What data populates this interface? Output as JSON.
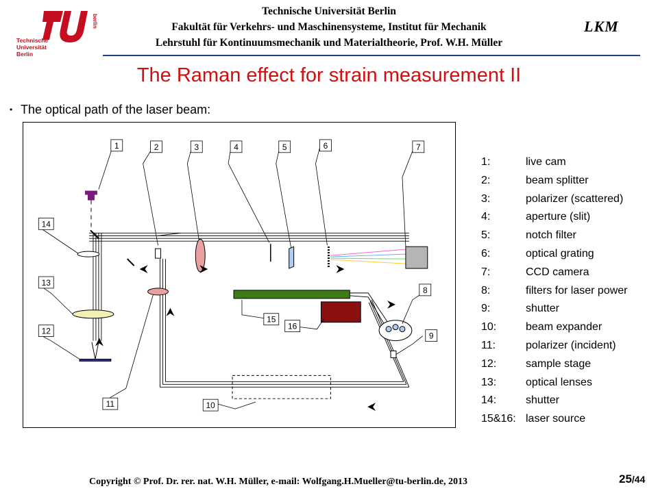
{
  "header": {
    "logo_text": [
      "Technische",
      "Universität",
      "Berlin"
    ],
    "logo_vertical": "berlin",
    "line1": "Technische Universität Berlin",
    "line2": "Fakultät für Verkehrs- und Maschinensysteme, Institut für Mechanik",
    "line3": "Lehrstuhl für Kontinuumsmechanik und Materialtheorie, Prof. W.H. Müller",
    "lkm": "LKM"
  },
  "title": "The Raman effect for strain measurement II",
  "bullet": "The optical path of the laser beam:",
  "diagram_labels": [
    "1",
    "2",
    "3",
    "4",
    "5",
    "6",
    "7",
    "8",
    "9",
    "10",
    "11",
    "12",
    "13",
    "14",
    "15",
    "16"
  ],
  "legend": [
    {
      "key": "1:",
      "text": "live cam"
    },
    {
      "key": "2:",
      "text": "beam splitter"
    },
    {
      "key": "3:",
      "text": "polarizer (scattered)"
    },
    {
      "key": "4:",
      "text": "aperture (slit)"
    },
    {
      "key": "5:",
      "text": "notch filter"
    },
    {
      "key": "6:",
      "text": "optical grating"
    },
    {
      "key": "7:",
      "text": "CCD camera"
    },
    {
      "key": "8:",
      "text": "filters for laser power"
    },
    {
      "key": "9:",
      "text": "shutter"
    },
    {
      "key": "10:",
      "text": "beam expander"
    },
    {
      "key": "11:",
      "text": "polarizer (incident)"
    },
    {
      "key": "12:",
      "text": "sample stage"
    },
    {
      "key": "13:",
      "text": "optical lenses"
    },
    {
      "key": "14:",
      "text": "shutter"
    },
    {
      "key": "15&16:",
      "text": "laser source"
    }
  ],
  "footer": "Copyright © Prof. Dr. rer. nat. W.H. Müller, e-mail: Wolfgang.H.Mueller@tu-berlin.de, 2013",
  "page": {
    "current": "25",
    "total": "/44"
  },
  "colors": {
    "title": "#d01010",
    "rule": "#1f3a8a",
    "laser_green": "#3f7a18",
    "laser_red": "#8b1010",
    "cam": "#7a1a7a"
  }
}
